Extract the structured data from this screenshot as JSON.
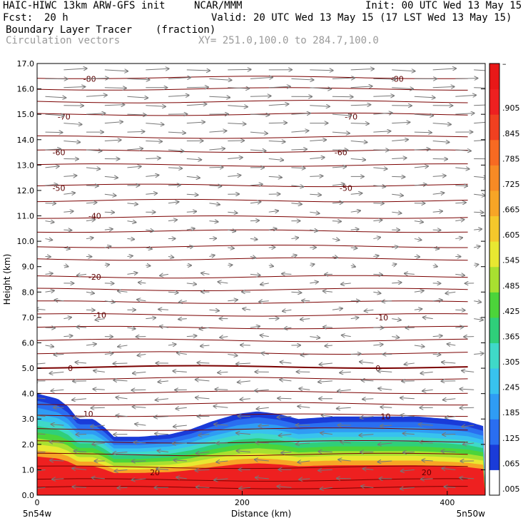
{
  "header": {
    "model": "HAIC-HIWC 13km ARW-GFS init",
    "org": "NCAR/MMM",
    "init": "Init: 00 UTC Wed 13 May 15",
    "fcst_label": "Fcst:",
    "fcst_value": "20 h",
    "valid": "Valid: 20 UTC Wed 13 May 15 (17 LST Wed 13 May 15)",
    "field": "Boundary Layer Tracer",
    "units": "(fraction)",
    "vectors": "Circulation vectors",
    "xy": "XY= 251.0,100.0 to 284.7,100.0"
  },
  "chart_data": {
    "type": "heatmap",
    "description_fields": [
      "Boundary Layer Tracer",
      "Circulation vectors"
    ],
    "xlabel": "Distance (km)",
    "ylabel": "Height (km)",
    "xlim": [
      0,
      437
    ],
    "ylim": [
      0,
      17
    ],
    "x_ticks": [
      0,
      200,
      400
    ],
    "y_ticks": [
      "0.0",
      "1.0",
      "2.0",
      "3.0",
      "4.0",
      "5.0",
      "6.0",
      "7.0",
      "8.0",
      "9.0",
      "10.0",
      "11.0",
      "12.0",
      "13.0",
      "14.0",
      "15.0",
      "16.0",
      "17.0"
    ],
    "x_end_labels": {
      "left": "5n54w",
      "right": "5n50w"
    },
    "colorbar": {
      "labels": [
        ".005",
        ".065",
        ".125",
        ".185",
        ".245",
        ".305",
        ".365",
        ".425",
        ".485",
        ".545",
        ".605",
        ".665",
        ".725",
        ".785",
        ".845",
        ".905"
      ],
      "colors": [
        "#ffffff",
        "#1a3bd8",
        "#2a6ef0",
        "#2f9cf4",
        "#38c2ee",
        "#3fd9c8",
        "#2fcf7a",
        "#4cd43a",
        "#a8e030",
        "#e8e831",
        "#f5c82b",
        "#f7a526",
        "#f78a25",
        "#f76a22",
        "#f04020",
        "#ee2020",
        "#e81818"
      ]
    },
    "temperature_contours_C": [
      -80,
      -70,
      -60,
      -50,
      -40,
      -30,
      -20,
      -10,
      0,
      10,
      20
    ],
    "contour_labels": [
      {
        "x": 45,
        "h": 16.4,
        "t": "-80"
      },
      {
        "x": 345,
        "h": 16.4,
        "t": "-80"
      },
      {
        "x": 20,
        "h": 14.9,
        "t": "-70"
      },
      {
        "x": 300,
        "h": 14.9,
        "t": "-70"
      },
      {
        "x": 15,
        "h": 13.5,
        "t": "-60"
      },
      {
        "x": 290,
        "h": 13.5,
        "t": "-60"
      },
      {
        "x": 15,
        "h": 12.1,
        "t": "-50"
      },
      {
        "x": 295,
        "h": 12.1,
        "t": "-50"
      },
      {
        "x": 50,
        "h": 11.0,
        "t": "-40"
      },
      {
        "x": 50,
        "h": 8.6,
        "t": "-20"
      },
      {
        "x": 55,
        "h": 7.1,
        "t": "-10"
      },
      {
        "x": 330,
        "h": 7.0,
        "t": "-10"
      },
      {
        "x": 30,
        "h": 5.0,
        "t": "0"
      },
      {
        "x": 330,
        "h": 5.0,
        "t": "0"
      },
      {
        "x": 45,
        "h": 3.2,
        "t": "10"
      },
      {
        "x": 335,
        "h": 3.1,
        "t": "10"
      },
      {
        "x": 110,
        "h": 0.9,
        "t": "20"
      },
      {
        "x": 375,
        "h": 0.9,
        "t": "20"
      }
    ],
    "tracer_top_km": [
      [
        0,
        4.0
      ],
      [
        20,
        3.8
      ],
      [
        30,
        3.5
      ],
      [
        40,
        3.0
      ],
      [
        55,
        3.0
      ],
      [
        65,
        2.7
      ],
      [
        75,
        2.3
      ],
      [
        100,
        2.3
      ],
      [
        130,
        2.4
      ],
      [
        150,
        2.6
      ],
      [
        170,
        2.9
      ],
      [
        195,
        3.2
      ],
      [
        215,
        3.3
      ],
      [
        235,
        3.2
      ],
      [
        255,
        3.0
      ],
      [
        290,
        3.1
      ],
      [
        330,
        3.1
      ],
      [
        370,
        3.1
      ],
      [
        400,
        3.0
      ],
      [
        420,
        2.9
      ],
      [
        437,
        2.7
      ]
    ]
  }
}
